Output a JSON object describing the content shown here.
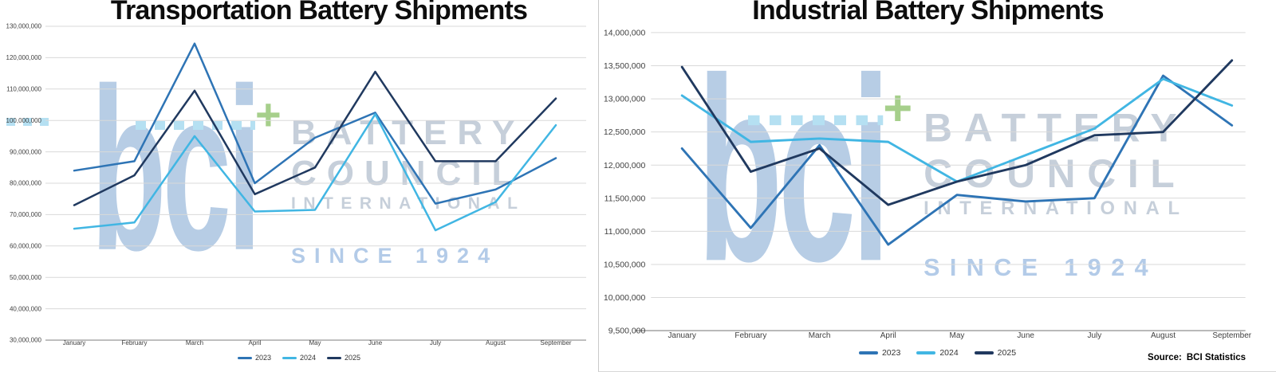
{
  "source": {
    "label": "Source:",
    "value": "BCI Statistics"
  },
  "watermark": {
    "logo": "bci",
    "line1": "BATTERY",
    "line2": "COUNCIL",
    "line3": "INTERNATIONAL",
    "since": "SINCE 1924",
    "plus": "+",
    "logo_color": "#b7cde5",
    "text_color": "#c6cfda",
    "since_color": "#b3cbe8",
    "dash_color": "#b5e0f2",
    "plus_color": "#a6cf8b"
  },
  "styles": {
    "series_colors": {
      "2023": "#2e74b5",
      "2024": "#41b6e3",
      "2025": "#20395f"
    },
    "grid_color": "#d9d9d9",
    "axis_color": "#a8a8a8",
    "tick_color": "#3f3f3f",
    "title_color": "#0d0d0d",
    "background": "#ffffff"
  },
  "chart_data": [
    {
      "type": "line",
      "title": "Transportation Battery Shipments",
      "xlabel": "",
      "ylabel": "",
      "categories": [
        "January",
        "February",
        "March",
        "April",
        "May",
        "June",
        "July",
        "August",
        "September"
      ],
      "y_tick_labels": [
        "130,000,000",
        "120,000,000",
        "110,000,000",
        "100,000,000",
        "90,000,000",
        "80,000,000",
        "70,000,000",
        "60,000,000",
        "50,000,000",
        "40,000,000",
        "30,000,000"
      ],
      "ylim": [
        30000000,
        130000000
      ],
      "y_tick_step": 10000000,
      "grid": true,
      "legend_position": "bottom",
      "series": [
        {
          "name": "2023",
          "values": [
            84000000,
            87000000,
            124500000,
            80000000,
            94500000,
            102500000,
            73500000,
            78000000,
            88000000
          ]
        },
        {
          "name": "2024",
          "values": [
            65500000,
            67500000,
            95000000,
            71000000,
            71500000,
            102000000,
            65000000,
            74000000,
            98500000
          ]
        },
        {
          "name": "2025",
          "values": [
            73000000,
            82500000,
            109500000,
            76500000,
            85000000,
            115500000,
            87000000,
            87000000,
            107000000
          ]
        }
      ]
    },
    {
      "type": "line",
      "title": "Industrial Battery Shipments",
      "xlabel": "",
      "ylabel": "",
      "categories": [
        "January",
        "February",
        "March",
        "April",
        "May",
        "June",
        "July",
        "August",
        "September"
      ],
      "y_tick_labels": [
        "14,000,000",
        "13,500,000",
        "13,000,000",
        "12,500,000",
        "12,000,000",
        "11,500,000",
        "11,000,000",
        "10,500,000",
        "10,000,000",
        "9,500,000"
      ],
      "ylim": [
        9500000,
        14000000
      ],
      "y_tick_step": 500000,
      "grid": true,
      "legend_position": "bottom",
      "series": [
        {
          "name": "2023",
          "values": [
            12250000,
            11050000,
            12300000,
            10800000,
            11550000,
            11450000,
            11500000,
            13350000,
            12600000
          ]
        },
        {
          "name": "2024",
          "values": [
            13050000,
            12350000,
            12400000,
            12350000,
            11750000,
            12150000,
            12550000,
            13300000,
            12900000
          ]
        },
        {
          "name": "2025",
          "values": [
            13480000,
            11900000,
            12250000,
            11400000,
            11750000,
            12000000,
            12450000,
            12500000,
            13580000
          ]
        }
      ]
    }
  ]
}
